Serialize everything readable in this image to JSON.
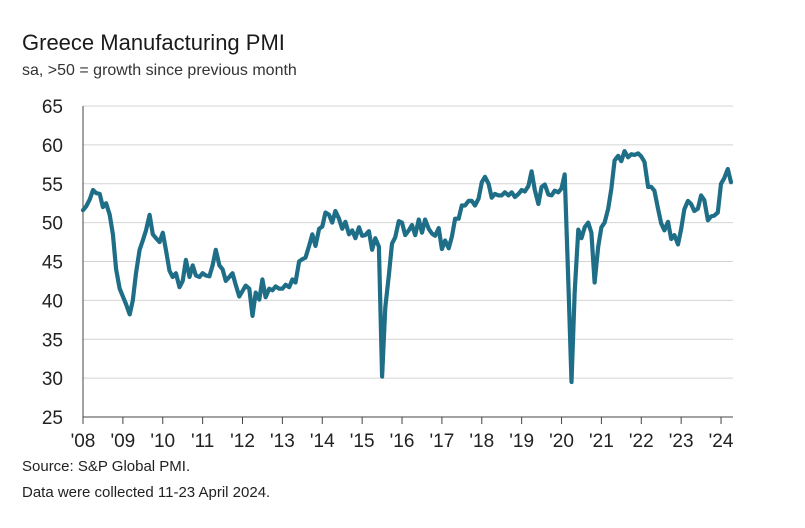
{
  "title": "Greece Manufacturing PMI",
  "subtitle": "sa, >50 = growth since previous month",
  "source": "Source: S&P Global PMI.",
  "collected": "Data were collected 11-23 April 2024.",
  "colors": {
    "line": "#1f6e87",
    "grid": "#d4d4d4",
    "axis": "#444444"
  },
  "chart_data": {
    "type": "line",
    "title": "Greece Manufacturing PMI",
    "subtitle": "sa, >50 = growth since previous month",
    "ylim": [
      25,
      65
    ],
    "yticks": [
      25,
      30,
      35,
      40,
      45,
      50,
      55,
      60,
      65
    ],
    "xlim": [
      2008.0,
      2024.3
    ],
    "xticks": [
      {
        "label": "'08",
        "value": 2008
      },
      {
        "label": "'09",
        "value": 2009
      },
      {
        "label": "'10",
        "value": 2010
      },
      {
        "label": "'11",
        "value": 2011
      },
      {
        "label": "'12",
        "value": 2012
      },
      {
        "label": "'13",
        "value": 2013
      },
      {
        "label": "'14",
        "value": 2014
      },
      {
        "label": "'15",
        "value": 2015
      },
      {
        "label": "'16",
        "value": 2016
      },
      {
        "label": "'17",
        "value": 2017
      },
      {
        "label": "'18",
        "value": 2018
      },
      {
        "label": "'19",
        "value": 2019
      },
      {
        "label": "'20",
        "value": 2020
      },
      {
        "label": "'21",
        "value": 2021
      },
      {
        "label": "'22",
        "value": 2022
      },
      {
        "label": "'23",
        "value": 2023
      },
      {
        "label": "'24",
        "value": 2024
      }
    ],
    "grid": "horizontal",
    "series": [
      {
        "points": [
          [
            2008.0,
            51.6
          ],
          [
            2008.08,
            52.1
          ],
          [
            2008.17,
            53.0
          ],
          [
            2008.25,
            54.2
          ],
          [
            2008.33,
            53.8
          ],
          [
            2008.42,
            53.7
          ],
          [
            2008.5,
            52.0
          ],
          [
            2008.58,
            52.5
          ],
          [
            2008.67,
            51.0
          ],
          [
            2008.75,
            48.5
          ],
          [
            2008.83,
            44.0
          ],
          [
            2008.92,
            41.5
          ],
          [
            2009.0,
            40.5
          ],
          [
            2009.08,
            39.5
          ],
          [
            2009.17,
            38.2
          ],
          [
            2009.25,
            40.0
          ],
          [
            2009.33,
            43.5
          ],
          [
            2009.42,
            46.5
          ],
          [
            2009.5,
            47.7
          ],
          [
            2009.58,
            49.0
          ],
          [
            2009.67,
            51.0
          ],
          [
            2009.75,
            48.5
          ],
          [
            2009.83,
            48.0
          ],
          [
            2009.92,
            47.5
          ],
          [
            2010.0,
            48.7
          ],
          [
            2010.08,
            46.5
          ],
          [
            2010.17,
            43.8
          ],
          [
            2010.25,
            43.0
          ],
          [
            2010.33,
            43.5
          ],
          [
            2010.42,
            41.7
          ],
          [
            2010.5,
            42.5
          ],
          [
            2010.58,
            45.2
          ],
          [
            2010.67,
            43.0
          ],
          [
            2010.75,
            44.5
          ],
          [
            2010.83,
            43.2
          ],
          [
            2010.92,
            43.0
          ],
          [
            2011.0,
            43.5
          ],
          [
            2011.08,
            43.2
          ],
          [
            2011.17,
            43.1
          ],
          [
            2011.25,
            44.5
          ],
          [
            2011.33,
            46.5
          ],
          [
            2011.42,
            44.5
          ],
          [
            2011.5,
            44.0
          ],
          [
            2011.58,
            42.5
          ],
          [
            2011.67,
            43.0
          ],
          [
            2011.75,
            43.5
          ],
          [
            2011.83,
            42.0
          ],
          [
            2011.92,
            40.5
          ],
          [
            2012.0,
            41.2
          ],
          [
            2012.08,
            41.9
          ],
          [
            2012.17,
            41.5
          ],
          [
            2012.25,
            38.0
          ],
          [
            2012.33,
            41.0
          ],
          [
            2012.42,
            40.1
          ],
          [
            2012.5,
            42.7
          ],
          [
            2012.58,
            40.4
          ],
          [
            2012.67,
            41.5
          ],
          [
            2012.75,
            41.3
          ],
          [
            2012.83,
            41.8
          ],
          [
            2012.92,
            41.5
          ],
          [
            2013.0,
            41.5
          ],
          [
            2013.08,
            42.0
          ],
          [
            2013.17,
            41.7
          ],
          [
            2013.25,
            42.7
          ],
          [
            2013.33,
            42.3
          ],
          [
            2013.42,
            45.0
          ],
          [
            2013.5,
            45.3
          ],
          [
            2013.58,
            45.5
          ],
          [
            2013.67,
            47.0
          ],
          [
            2013.75,
            48.5
          ],
          [
            2013.83,
            47.0
          ],
          [
            2013.92,
            49.2
          ],
          [
            2014.0,
            49.5
          ],
          [
            2014.08,
            51.3
          ],
          [
            2014.17,
            51.0
          ],
          [
            2014.25,
            50.0
          ],
          [
            2014.33,
            51.5
          ],
          [
            2014.42,
            50.5
          ],
          [
            2014.5,
            49.2
          ],
          [
            2014.58,
            50.1
          ],
          [
            2014.67,
            48.5
          ],
          [
            2014.75,
            49.0
          ],
          [
            2014.83,
            48.0
          ],
          [
            2014.92,
            49.4
          ],
          [
            2015.0,
            48.3
          ],
          [
            2015.08,
            48.4
          ],
          [
            2015.17,
            48.9
          ],
          [
            2015.25,
            46.5
          ],
          [
            2015.33,
            48.0
          ],
          [
            2015.42,
            46.9
          ],
          [
            2015.5,
            30.2
          ],
          [
            2015.58,
            39.1
          ],
          [
            2015.67,
            43.3
          ],
          [
            2015.75,
            47.3
          ],
          [
            2015.83,
            48.1
          ],
          [
            2015.92,
            50.2
          ],
          [
            2016.0,
            50.0
          ],
          [
            2016.08,
            48.4
          ],
          [
            2016.17,
            49.0
          ],
          [
            2016.25,
            49.7
          ],
          [
            2016.33,
            48.4
          ],
          [
            2016.42,
            50.4
          ],
          [
            2016.5,
            48.7
          ],
          [
            2016.58,
            50.4
          ],
          [
            2016.67,
            49.2
          ],
          [
            2016.75,
            48.6
          ],
          [
            2016.83,
            48.3
          ],
          [
            2016.92,
            49.3
          ],
          [
            2017.0,
            46.6
          ],
          [
            2017.08,
            47.7
          ],
          [
            2017.17,
            46.7
          ],
          [
            2017.25,
            48.2
          ],
          [
            2017.33,
            50.5
          ],
          [
            2017.42,
            50.5
          ],
          [
            2017.5,
            52.2
          ],
          [
            2017.58,
            52.2
          ],
          [
            2017.67,
            52.8
          ],
          [
            2017.75,
            52.8
          ],
          [
            2017.83,
            52.2
          ],
          [
            2017.92,
            53.1
          ],
          [
            2018.0,
            55.2
          ],
          [
            2018.08,
            55.9
          ],
          [
            2018.17,
            55.0
          ],
          [
            2018.25,
            53.2
          ],
          [
            2018.33,
            53.7
          ],
          [
            2018.42,
            53.5
          ],
          [
            2018.5,
            53.5
          ],
          [
            2018.58,
            53.9
          ],
          [
            2018.67,
            53.5
          ],
          [
            2018.75,
            53.9
          ],
          [
            2018.83,
            53.3
          ],
          [
            2018.92,
            53.7
          ],
          [
            2019.0,
            54.2
          ],
          [
            2019.08,
            54.0
          ],
          [
            2019.17,
            54.7
          ],
          [
            2019.25,
            56.6
          ],
          [
            2019.33,
            54.2
          ],
          [
            2019.42,
            52.4
          ],
          [
            2019.5,
            54.6
          ],
          [
            2019.58,
            54.9
          ],
          [
            2019.67,
            53.6
          ],
          [
            2019.75,
            53.5
          ],
          [
            2019.83,
            54.1
          ],
          [
            2019.92,
            53.9
          ],
          [
            2020.0,
            54.4
          ],
          [
            2020.08,
            56.2
          ],
          [
            2020.17,
            42.5
          ],
          [
            2020.25,
            29.5
          ],
          [
            2020.33,
            41.1
          ],
          [
            2020.42,
            49.1
          ],
          [
            2020.5,
            48.0
          ],
          [
            2020.58,
            49.4
          ],
          [
            2020.67,
            50.0
          ],
          [
            2020.75,
            48.7
          ],
          [
            2020.83,
            42.3
          ],
          [
            2020.92,
            46.9
          ],
          [
            2021.0,
            49.4
          ],
          [
            2021.08,
            50.0
          ],
          [
            2021.17,
            51.8
          ],
          [
            2021.25,
            54.4
          ],
          [
            2021.33,
            58.0
          ],
          [
            2021.42,
            58.6
          ],
          [
            2021.5,
            57.9
          ],
          [
            2021.58,
            59.2
          ],
          [
            2021.67,
            58.4
          ],
          [
            2021.75,
            58.8
          ],
          [
            2021.83,
            58.7
          ],
          [
            2021.92,
            58.9
          ],
          [
            2022.0,
            58.5
          ],
          [
            2022.08,
            57.8
          ],
          [
            2022.17,
            54.6
          ],
          [
            2022.25,
            54.6
          ],
          [
            2022.33,
            54.1
          ],
          [
            2022.42,
            51.8
          ],
          [
            2022.5,
            49.9
          ],
          [
            2022.58,
            49.0
          ],
          [
            2022.67,
            50.1
          ],
          [
            2022.75,
            47.9
          ],
          [
            2022.83,
            48.4
          ],
          [
            2022.92,
            47.2
          ],
          [
            2023.0,
            49.2
          ],
          [
            2023.08,
            51.7
          ],
          [
            2023.17,
            52.8
          ],
          [
            2023.25,
            52.4
          ],
          [
            2023.33,
            51.5
          ],
          [
            2023.42,
            51.8
          ],
          [
            2023.5,
            53.5
          ],
          [
            2023.58,
            52.9
          ],
          [
            2023.67,
            50.3
          ],
          [
            2023.75,
            50.8
          ],
          [
            2023.83,
            50.9
          ],
          [
            2023.92,
            51.3
          ],
          [
            2024.0,
            55.0
          ],
          [
            2024.08,
            55.7
          ],
          [
            2024.17,
            56.9
          ],
          [
            2024.25,
            55.2
          ]
        ]
      }
    ]
  }
}
